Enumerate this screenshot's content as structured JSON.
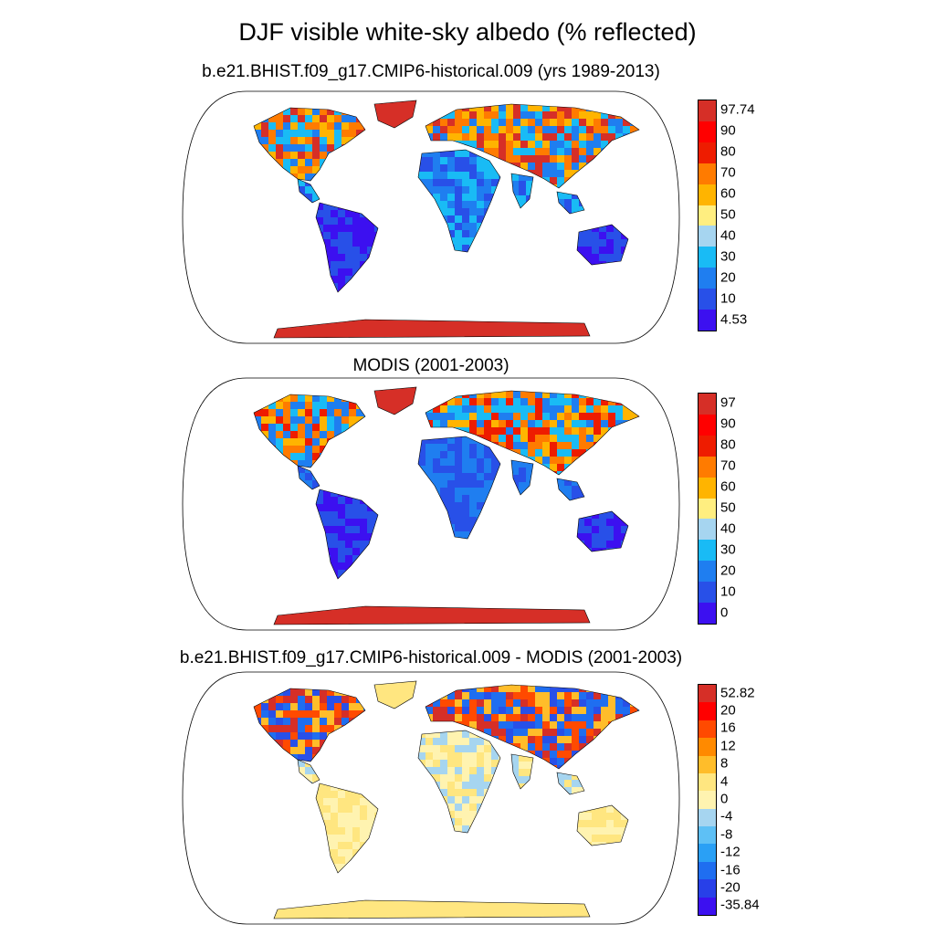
{
  "title": "DJF visible white-sky albedo (% reflected)",
  "panels": [
    {
      "id": "model",
      "title": "b.e21.BHIST.f09_g17.CMIP6-historical.009 (yrs 1989-2013)",
      "colorbar": {
        "labels": [
          "97.74",
          "90",
          "80",
          "70",
          "60",
          "50",
          "40",
          "30",
          "20",
          "10",
          "4.53"
        ],
        "colors": [
          "#d62f27",
          "#ff0000",
          "#ee1c00",
          "#ff7b00",
          "#ffb400",
          "#ffee80",
          "#a6d5f0",
          "#19bbf5",
          "#1f7ef0",
          "#2850e8",
          "#3c10f0"
        ]
      }
    },
    {
      "id": "modis",
      "title": "MODIS (2001-2003)",
      "colorbar": {
        "labels": [
          "97",
          "90",
          "80",
          "70",
          "60",
          "50",
          "40",
          "30",
          "20",
          "10",
          "0"
        ],
        "colors": [
          "#d62f27",
          "#ff0000",
          "#ee1c00",
          "#ff7b00",
          "#ffb400",
          "#ffee80",
          "#a6d5f0",
          "#19bbf5",
          "#1f7ef0",
          "#2850e8",
          "#3c10f0"
        ]
      }
    },
    {
      "id": "diff",
      "title": "b.e21.BHIST.f09_g17.CMIP6-historical.009 - MODIS (2001-2003)",
      "colorbar": {
        "labels": [
          "52.82",
          "20",
          "16",
          "12",
          "8",
          "4",
          "0",
          "-4",
          "-8",
          "-12",
          "-16",
          "-20",
          "-35.84"
        ],
        "colors": [
          "#d62f27",
          "#ff0000",
          "#ff4a00",
          "#ff8a00",
          "#ffbd2a",
          "#ffe680",
          "#fff3b0",
          "#a6d5f0",
          "#5ec0f5",
          "#2aa0f5",
          "#1f6ef0",
          "#2840e8",
          "#3c10f0"
        ]
      }
    }
  ]
}
